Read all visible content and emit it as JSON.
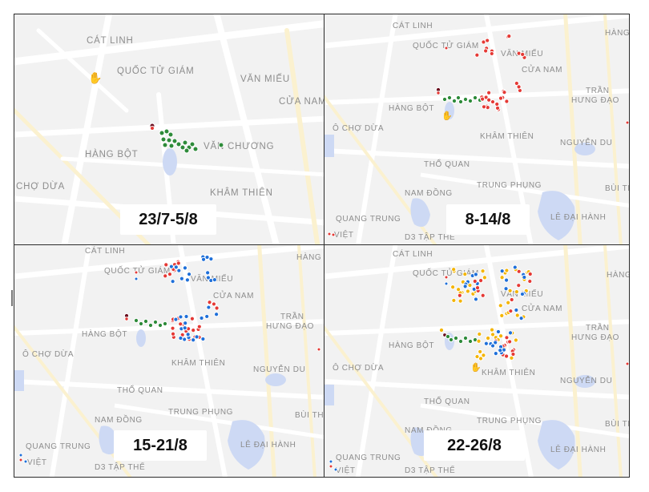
{
  "panels": [
    {
      "id": "p1",
      "caption": "23/7-5/8",
      "labels": [
        "CÁT LINH",
        "QUỐC TỬ GIÁM",
        "VĂN MIẾU",
        "CỬA NAM",
        "VĂN CHƯƠNG",
        "HÀNG BỘT",
        "CHỢ DỪA",
        "KHÂM THIÊN"
      ]
    },
    {
      "id": "p2",
      "caption": "8-14/8",
      "labels": [
        "CÁT LINH",
        "QUỐC TỬ GIÁM",
        "VĂN MIẾU",
        "HÀNG",
        "CỬA NAM",
        "TRẦN",
        "HƯNG ĐẠO",
        "HÀNG BỘT",
        "Ô CHỢ DỪA",
        "KHÂM THIÊN",
        "NGUYỄN DU",
        "THỔ QUAN",
        "TRUNG PHỤNG",
        "NAM ĐỒNG",
        "BÙI TH",
        "QUANG TRUNG",
        "LÊ ĐẠI HÀNH",
        "D3 TẬP THỂ",
        "VIỆT"
      ]
    },
    {
      "id": "p3",
      "caption": "15-21/8",
      "labels": [
        "CÁT LINH",
        "QUỐC TỬ GIÁM",
        "VĂN MIẾU",
        "HÀNG",
        "CỬA NAM",
        "TRẦN",
        "HƯNG ĐẠO",
        "HÀNG BỘT",
        "Ô CHỢ DỪA",
        "KHÂM THIÊN",
        "NGUYỄN DU",
        "THỔ QUAN",
        "TRUNG PHỤNG",
        "NAM ĐỒNG",
        "BÙI TH",
        "QUANG TRUNG",
        "LÊ ĐẠI HÀNH",
        "D3 TẬP THỂ",
        "VIỆT"
      ]
    },
    {
      "id": "p4",
      "caption": "22-26/8",
      "labels": [
        "CÁT LINH",
        "QUỐC TỬ GIÁM",
        "VĂN MIẾU",
        "HÀNG",
        "CỬA NAM",
        "TRẦN",
        "HƯNG ĐẠO",
        "HÀNG BỘT",
        "Ô CHỢ DỪA",
        "KHÂM THIÊN",
        "NGUYỄN DU",
        "THỔ QUAN",
        "TRUNG PHỤNG",
        "NAM ĐỒNG",
        "BÙI TH",
        "QUANG TRUNG",
        "LÊ ĐẠI HÀNH",
        "D3 TẬP THỂ",
        "VIỆT"
      ]
    }
  ],
  "colors": {
    "map_bg": "#f2f2f2",
    "road": "#ffffff",
    "road_major": "#fbf1cf",
    "water": "#cdd9f4",
    "label": "#8d8d8d",
    "marker_green": "#2e8b3a",
    "marker_red": "#e53935",
    "marker_blue": "#1e6fd9",
    "marker_yellow": "#f4b400",
    "marker_maroon": "#6b1020",
    "frame": "#2b2b2b"
  },
  "legend_note": "Cluster markers by week: green, red, blue, yellow"
}
